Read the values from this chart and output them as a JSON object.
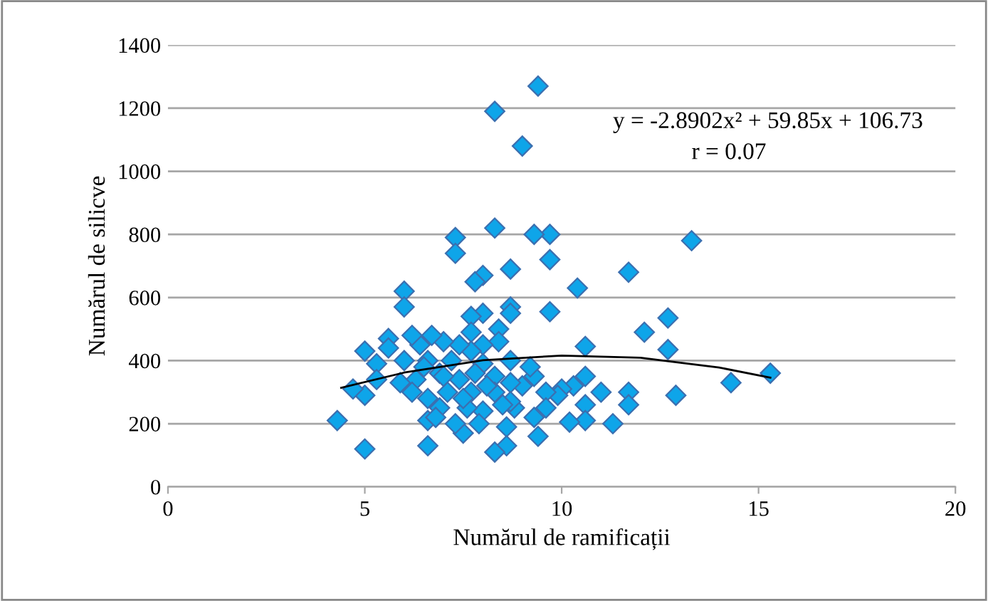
{
  "chart_data": {
    "type": "scatter",
    "xlabel": "Numărul de ramificații",
    "ylabel": "Numărul de silicve",
    "xlim": [
      0,
      20
    ],
    "ylim": [
      0,
      1400
    ],
    "xticks": [
      0,
      5,
      10,
      15,
      20
    ],
    "yticks": [
      0,
      200,
      400,
      600,
      800,
      1000,
      1200,
      1400
    ],
    "grid": "y",
    "legend": false,
    "marker": "diamond",
    "annotations": [
      "y = -2.8902x² + 59.85x + 106.73",
      "r = 0.07"
    ],
    "series": [
      {
        "color": "#0ea5e9",
        "x": [
          15.3,
          14.3,
          13.3,
          12.9,
          12.7,
          12.7,
          12.1,
          11.7,
          11.7,
          11.7,
          11.3,
          11.0,
          10.6,
          10.6,
          10.6,
          10.6,
          10.4,
          10.3,
          10.2,
          10.0,
          9.9,
          9.7,
          9.7,
          9.7,
          9.6,
          9.6,
          9.4,
          9.3,
          9.3,
          9.3,
          9.4,
          9.0,
          9.0,
          8.8,
          8.7,
          8.7,
          8.7,
          8.7,
          8.7,
          8.7,
          8.6,
          8.6,
          8.3,
          8.3,
          8.4,
          8.4,
          8.3,
          8.3,
          8.3,
          8.1,
          8.0,
          8.0,
          8.0,
          8.0,
          8.0,
          7.9,
          7.8,
          7.7,
          7.7,
          7.7,
          7.7,
          7.6,
          7.5,
          7.3,
          7.3,
          7.4,
          7.4,
          7.3,
          7.2,
          7.1,
          7.0,
          6.9,
          6.9,
          6.7,
          6.6,
          6.6,
          6.6,
          6.6,
          6.4,
          6.3,
          6.2,
          6.2,
          6.0,
          6.0,
          6.0,
          5.9,
          5.6,
          5.6,
          5.3,
          5.3,
          5.0,
          5.0,
          5.0,
          4.7,
          4.3,
          6.5,
          7.0,
          7.5,
          8.5,
          9.2,
          6.8,
          7.8
        ],
        "values": [
          360,
          330,
          780,
          290,
          535,
          435,
          490,
          680,
          300,
          260,
          200,
          300,
          445,
          350,
          260,
          210,
          630,
          320,
          205,
          310,
          290,
          800,
          720,
          555,
          300,
          250,
          1270,
          800,
          350,
          220,
          160,
          1080,
          320,
          250,
          570,
          550,
          690,
          400,
          330,
          270,
          190,
          130,
          1190,
          820,
          500,
          460,
          350,
          300,
          110,
          320,
          670,
          550,
          450,
          390,
          240,
          200,
          650,
          540,
          490,
          430,
          300,
          250,
          170,
          790,
          740,
          450,
          340,
          200,
          400,
          300,
          460,
          360,
          250,
          480,
          400,
          280,
          210,
          130,
          450,
          340,
          480,
          300,
          620,
          570,
          400,
          330,
          470,
          440,
          390,
          340,
          430,
          290,
          120,
          310,
          210,
          380,
          350,
          280,
          260,
          380,
          220,
          360
        ]
      },
      {
        "type": "line",
        "color": "#000000",
        "marker": "none",
        "x": [
          4.4,
          6,
          8,
          10,
          12,
          14,
          15.3
        ],
        "values": [
          314,
          362,
          401,
          416,
          409,
          378,
          346
        ]
      }
    ]
  }
}
